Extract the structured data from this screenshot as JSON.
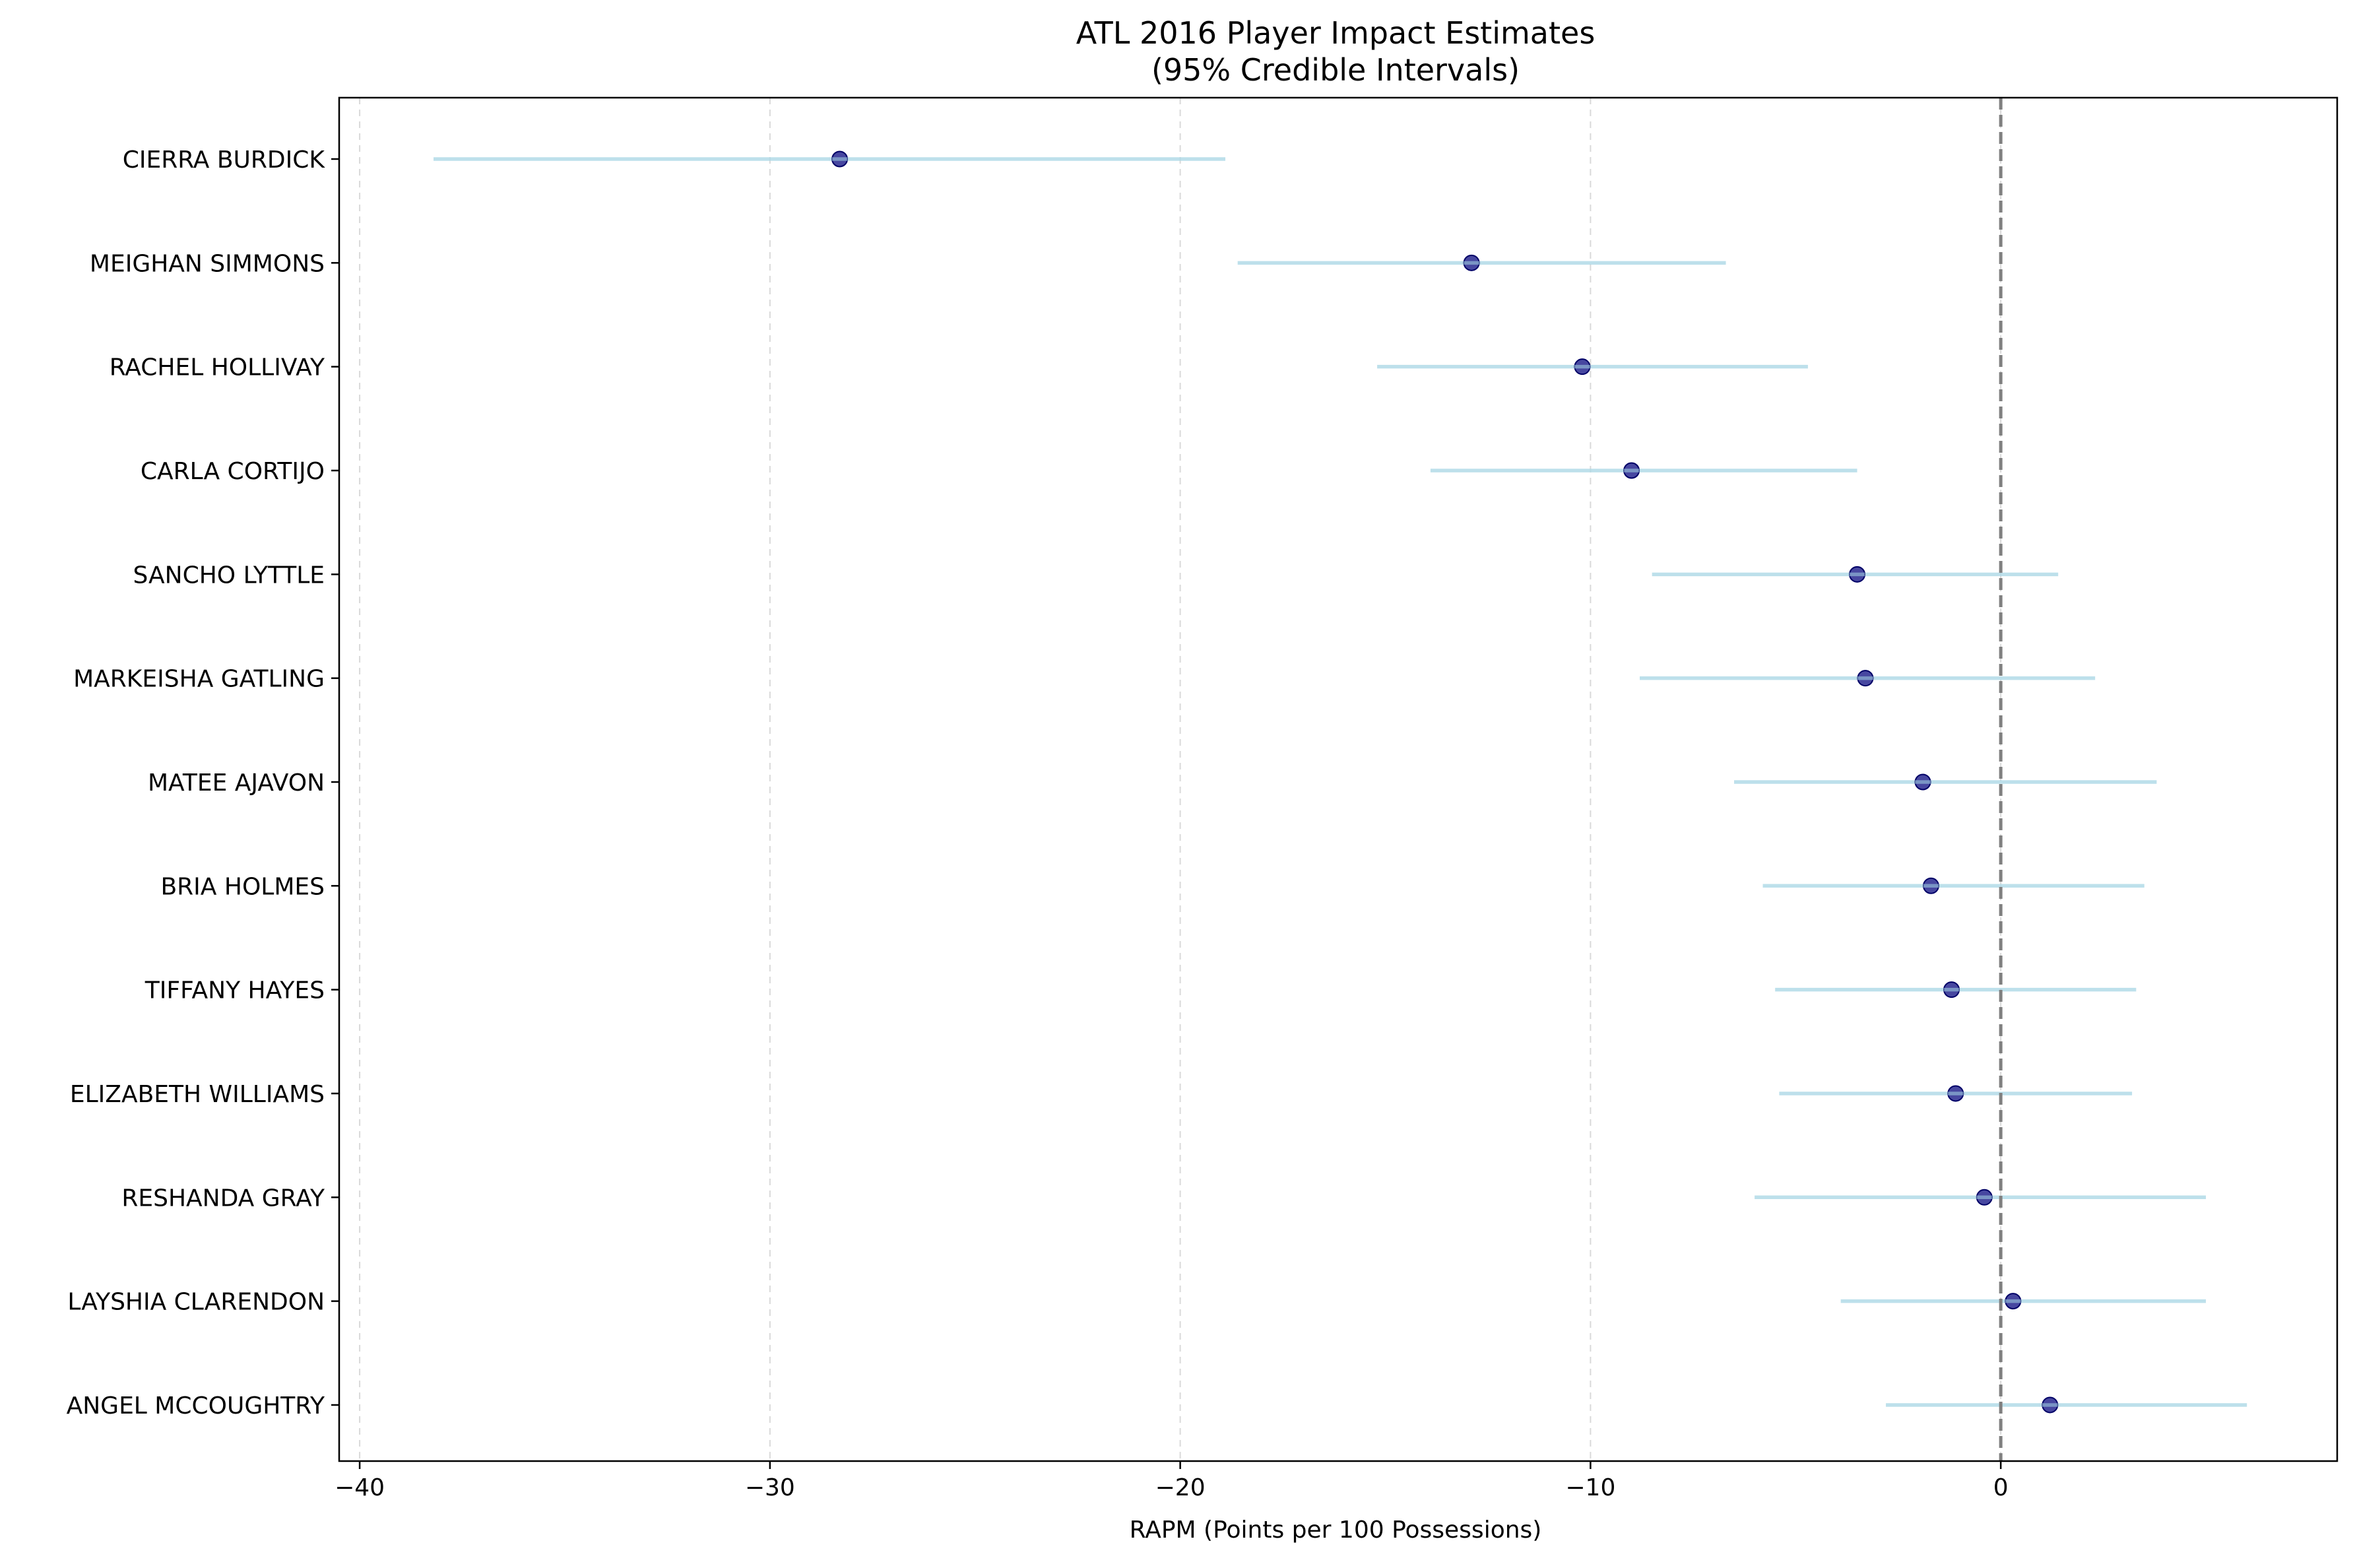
{
  "chart_data": {
    "type": "scatter",
    "title": "ATL 2016 Player Impact Estimates",
    "subtitle": "(95% Credible Intervals)",
    "xlabel": "RAPM (Points per 100 Possessions)",
    "ylabel": "",
    "xlim": [
      -40.5,
      8.2
    ],
    "x_ticks": [
      {
        "value": -40,
        "label": "−40"
      },
      {
        "value": -30,
        "label": "−30"
      },
      {
        "value": -20,
        "label": "−20"
      },
      {
        "value": -10,
        "label": "−10"
      },
      {
        "value": 0,
        "label": "0"
      }
    ],
    "grid": "x-dashed",
    "reference_line": 0,
    "colors": {
      "point_fill": "#27278f",
      "point_edge": "#000066",
      "interval": "#add8e6",
      "reference": "#808080",
      "grid": "#d9d9d9"
    },
    "players": [
      {
        "name": "CIERRA BURDICK",
        "estimate": -28.3,
        "lower": -38.2,
        "upper": -18.9
      },
      {
        "name": "MEIGHAN SIMMONS",
        "estimate": -12.9,
        "lower": -18.6,
        "upper": -6.7
      },
      {
        "name": "RACHEL HOLLIVAY",
        "estimate": -10.2,
        "lower": -15.2,
        "upper": -4.7
      },
      {
        "name": "CARLA CORTIJO",
        "estimate": -9.0,
        "lower": -13.9,
        "upper": -3.5
      },
      {
        "name": "SANCHO LYTTLE",
        "estimate": -3.5,
        "lower": -8.5,
        "upper": 1.4
      },
      {
        "name": "MARKEISHA GATLING",
        "estimate": -3.3,
        "lower": -8.8,
        "upper": 2.3
      },
      {
        "name": "MATEE AJAVON",
        "estimate": -1.9,
        "lower": -6.5,
        "upper": 3.8
      },
      {
        "name": "BRIA HOLMES",
        "estimate": -1.7,
        "lower": -5.8,
        "upper": 3.5
      },
      {
        "name": "TIFFANY HAYES",
        "estimate": -1.2,
        "lower": -5.5,
        "upper": 3.3
      },
      {
        "name": "ELIZABETH WILLIAMS",
        "estimate": -1.1,
        "lower": -5.4,
        "upper": 3.2
      },
      {
        "name": "RESHANDA GRAY",
        "estimate": -0.4,
        "lower": -6.0,
        "upper": 5.0
      },
      {
        "name": "LAYSHIA CLARENDON",
        "estimate": 0.3,
        "lower": -3.9,
        "upper": 5.0
      },
      {
        "name": "ANGEL MCCOUGHTRY",
        "estimate": 1.2,
        "lower": -2.8,
        "upper": 6.0
      }
    ]
  }
}
